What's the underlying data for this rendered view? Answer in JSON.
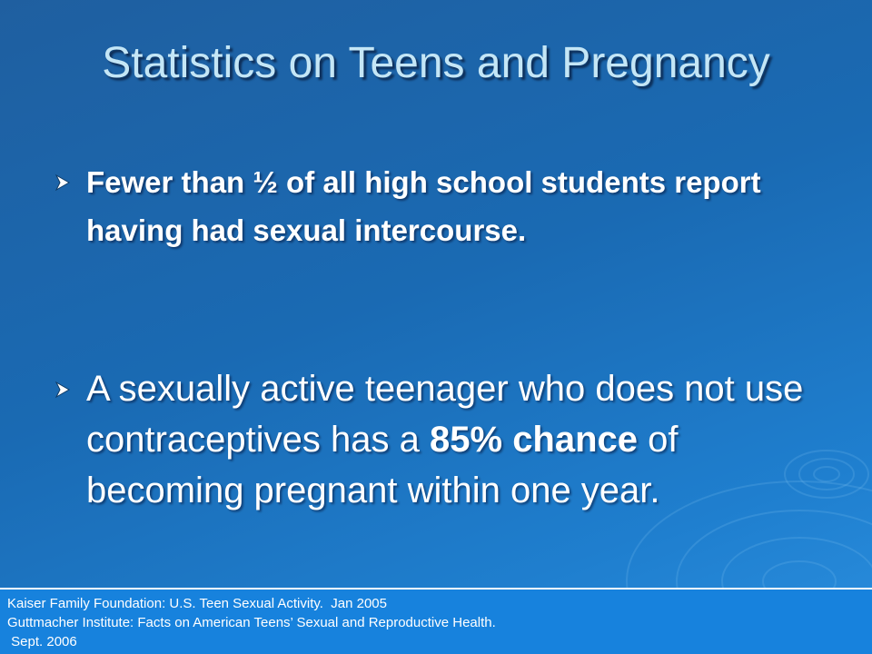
{
  "slide": {
    "title": "Statistics on Teens and Pregnancy",
    "bullets": [
      {
        "text": "Fewer than ½ of all high school students report having had sexual intercourse."
      },
      {
        "part1": "A sexually active teenager who does not use contraceptives has a ",
        "bold1": "85%",
        "part2": " ",
        "bold2": "chance",
        "part3": " of becoming pregnant within one year."
      }
    ],
    "sources": [
      "Kaiser Family Foundation: U.S. Teen Sexual Activity.  Jan 2005",
      "Guttmacher Institute: Facts on American Teens’ Sexual and Reproductive Health.",
      " Sept. 2006"
    ]
  },
  "colors": {
    "background": "#1a6ab3",
    "title": "#c4e6f6",
    "body_text": "#ffffff",
    "source_box": "#1782dd",
    "bullet_arrow": "#ffffff"
  },
  "icons": {
    "bullet_marker": "arrow-bullet-icon"
  }
}
